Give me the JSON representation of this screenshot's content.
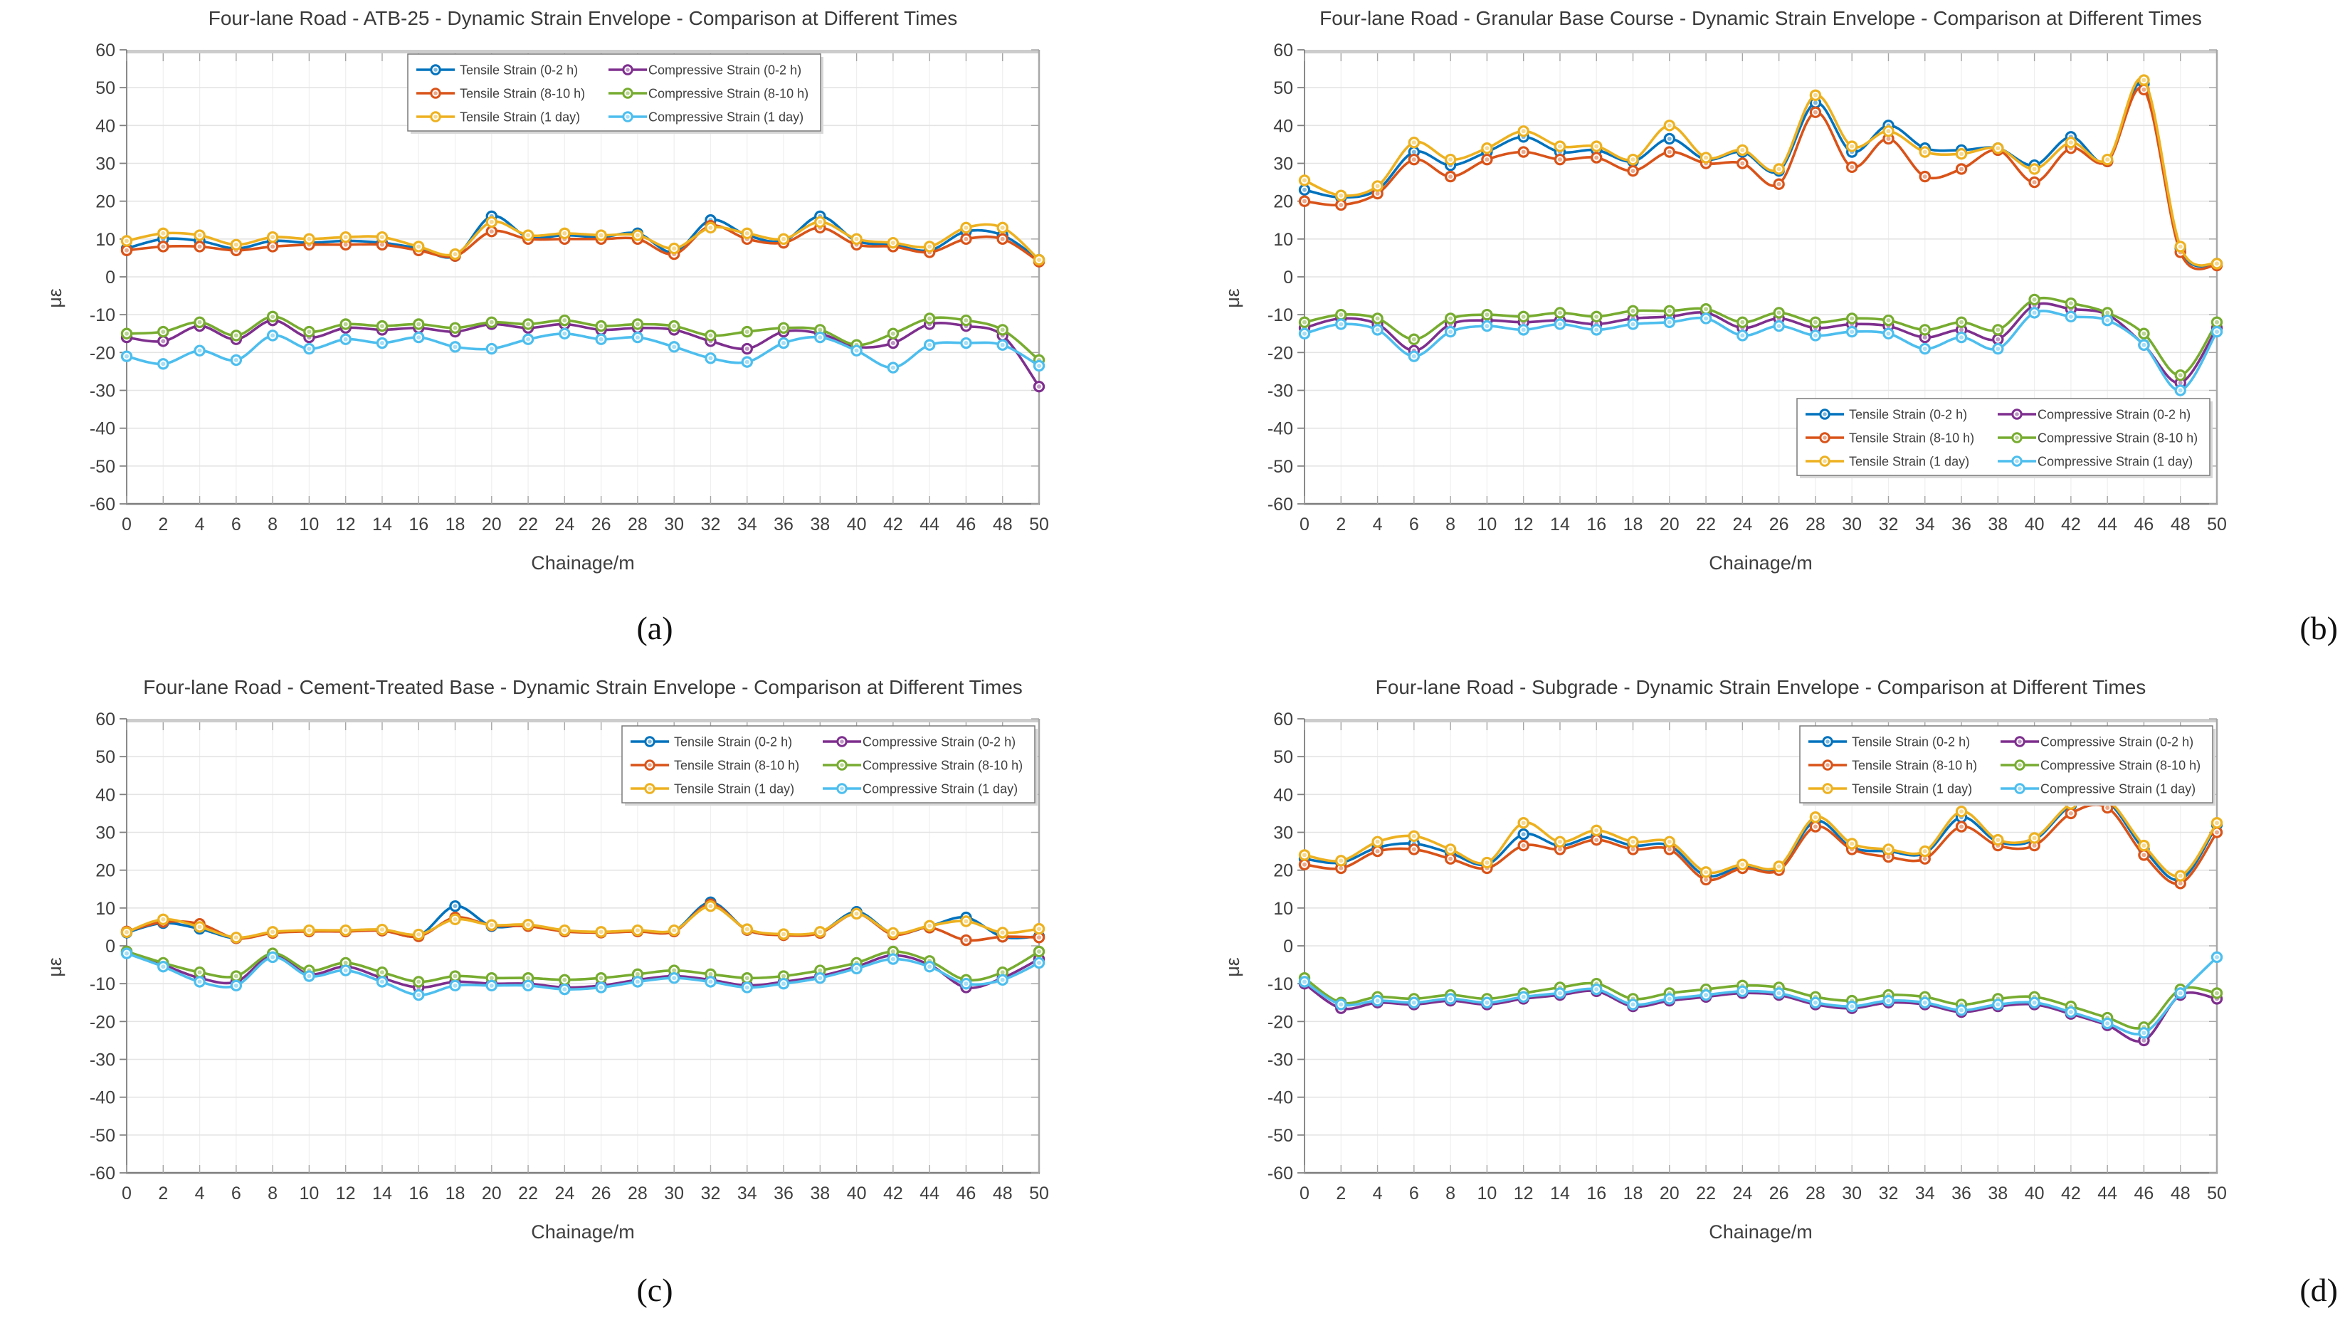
{
  "figure": {
    "background": "#ffffff",
    "captions": {
      "a": "(a)",
      "b": "(b)",
      "c": "(c)",
      "d": "(d)"
    }
  },
  "palette": {
    "tensile_0_2h": "#0072BD",
    "tensile_8_10h": "#D95319",
    "tensile_1day": "#EDB120",
    "compressive_0_2h": "#7E2F8E",
    "compressive_8_10h": "#77AC30",
    "compressive_1day": "#4DBEEE",
    "grid": "#e4e4e4",
    "axis": "#808080",
    "text": "#3f3f3f"
  },
  "chart_data": [
    {
      "type": "line",
      "id": "a",
      "title": "Four-lane Road - ATB-25 - Dynamic Strain Envelope - Comparison at Different Times",
      "xlabel": "Chainage/m",
      "ylabel": "με",
      "xlim": [
        0,
        50
      ],
      "ylim": [
        -60,
        60
      ],
      "grid": true,
      "legend_position": "north",
      "yticks": [
        60,
        50,
        40,
        30,
        20,
        10,
        0,
        -10,
        -20,
        -30,
        -40,
        -50,
        -60
      ],
      "x": [
        0,
        2,
        4,
        6,
        8,
        10,
        12,
        14,
        16,
        18,
        20,
        22,
        24,
        26,
        28,
        30,
        32,
        34,
        36,
        38,
        40,
        42,
        44,
        46,
        48,
        50
      ],
      "series": [
        {
          "name": "Tensile Strain (0-2 h)",
          "color": "#0072BD",
          "values": [
            7.5,
            10,
            9.5,
            7.5,
            9.5,
            9,
            9.5,
            9,
            7.5,
            5.5,
            16,
            10.5,
            11,
            10.5,
            11.5,
            6.5,
            15,
            11,
            9.5,
            16,
            9.5,
            8.5,
            7,
            12,
            11,
            4.5
          ]
        },
        {
          "name": "Tensile Strain (8-10 h)",
          "color": "#D95319",
          "values": [
            7,
            8,
            8,
            7,
            8,
            8.5,
            8.5,
            8.5,
            7,
            5.5,
            12,
            10,
            10,
            10,
            10,
            6,
            13.5,
            10,
            9,
            13,
            8.5,
            8,
            6.5,
            10,
            10,
            4
          ]
        },
        {
          "name": "Tensile Strain (1 day)",
          "color": "#EDB120",
          "values": [
            9.5,
            11.5,
            11,
            8.5,
            10.5,
            10,
            10.5,
            10.5,
            8,
            6,
            14.5,
            11,
            11.5,
            11,
            11,
            7.5,
            13,
            11.5,
            10,
            14.5,
            10,
            9,
            8,
            13,
            13,
            4.5
          ]
        },
        {
          "name": "Compressive Strain (0-2 h)",
          "color": "#7E2F8E",
          "values": [
            -16,
            -17,
            -13,
            -16.5,
            -11.5,
            -16,
            -13.5,
            -14,
            -13.5,
            -14.5,
            -12.5,
            -13.5,
            -12.5,
            -14,
            -13.5,
            -14,
            -17,
            -19,
            -14.5,
            -15,
            -18.5,
            -17.5,
            -12.5,
            -13,
            -15.5,
            -29
          ]
        },
        {
          "name": "Compressive Strain (8-10 h)",
          "color": "#77AC30",
          "values": [
            -15,
            -14.5,
            -12,
            -15.5,
            -10.5,
            -14.5,
            -12.5,
            -13,
            -12.5,
            -13.5,
            -12,
            -12.5,
            -11.5,
            -13,
            -12.5,
            -13,
            -15.5,
            -14.5,
            -13.5,
            -14,
            -18,
            -15,
            -11,
            -11.5,
            -14,
            -22
          ]
        },
        {
          "name": "Compressive Strain (1 day)",
          "color": "#4DBEEE",
          "values": [
            -21,
            -23,
            -19.5,
            -22,
            -15.5,
            -19,
            -16.5,
            -17.5,
            -16,
            -18.5,
            -19,
            -16.5,
            -15,
            -16.5,
            -16,
            -18.5,
            -21.5,
            -22.5,
            -17.5,
            -16,
            -19.5,
            -24,
            -18,
            -17.5,
            -18,
            -23.5
          ]
        }
      ]
    },
    {
      "type": "line",
      "id": "b",
      "title": "Four-lane Road - Granular Base Course - Dynamic Strain Envelope - Comparison at Different Times",
      "xlabel": "Chainage/m",
      "ylabel": "με",
      "xlim": [
        0,
        50
      ],
      "ylim": [
        -60,
        60
      ],
      "grid": true,
      "legend_position": "southeast",
      "yticks": [
        60,
        50,
        40,
        30,
        20,
        10,
        0,
        -10,
        -20,
        -30,
        -40,
        -50,
        -60
      ],
      "x": [
        0,
        2,
        4,
        6,
        8,
        10,
        12,
        14,
        16,
        18,
        20,
        22,
        24,
        26,
        28,
        30,
        32,
        34,
        36,
        38,
        40,
        42,
        44,
        46,
        48,
        50
      ],
      "series": [
        {
          "name": "Tensile Strain (0-2 h)",
          "color": "#0072BD",
          "values": [
            23,
            21,
            23,
            33,
            29.5,
            33,
            37,
            33,
            33.5,
            30.5,
            36.5,
            31,
            33,
            28,
            46,
            33,
            40,
            34,
            33.5,
            34,
            29.5,
            37,
            30.5,
            51,
            7.5,
            3.5
          ]
        },
        {
          "name": "Tensile Strain (8-10 h)",
          "color": "#D95319",
          "values": [
            20,
            19,
            22,
            31,
            26.5,
            31,
            33,
            31,
            31.5,
            28,
            33,
            30,
            30,
            24.5,
            43.5,
            29,
            36.5,
            26.5,
            28.5,
            33.5,
            25,
            34,
            30.5,
            49.5,
            6.5,
            3
          ]
        },
        {
          "name": "Tensile Strain (1 day)",
          "color": "#EDB120",
          "values": [
            25.5,
            21.5,
            24,
            35.5,
            31,
            34,
            38.5,
            34.5,
            34.5,
            31,
            40,
            31.5,
            33.5,
            28.5,
            48,
            34.5,
            38.5,
            33,
            32.5,
            34,
            28.5,
            35.5,
            31,
            52,
            8,
            3.5
          ]
        },
        {
          "name": "Compressive Strain (0-2 h)",
          "color": "#7E2F8E",
          "values": [
            -13.5,
            -11,
            -12.5,
            -19.5,
            -12.5,
            -11.5,
            -12,
            -11.5,
            -12.5,
            -11,
            -10.5,
            -9.5,
            -13.5,
            -11,
            -13.5,
            -12.5,
            -13,
            -16,
            -14,
            -16.5,
            -7.5,
            -8.5,
            -10,
            -18,
            -28,
            -13.5
          ]
        },
        {
          "name": "Compressive Strain (8-10 h)",
          "color": "#77AC30",
          "values": [
            -12,
            -10,
            -11,
            -16.5,
            -11,
            -10,
            -10.5,
            -9.5,
            -10.5,
            -9,
            -9,
            -8.5,
            -12,
            -9.5,
            -12,
            -11,
            -11.5,
            -14,
            -12,
            -14,
            -6,
            -7,
            -9.5,
            -15,
            -26,
            -12
          ]
        },
        {
          "name": "Compressive Strain (1 day)",
          "color": "#4DBEEE",
          "values": [
            -15,
            -12.5,
            -14,
            -21,
            -14.5,
            -13,
            -14,
            -12.5,
            -14,
            -12.5,
            -12,
            -11,
            -15.5,
            -13,
            -15.5,
            -14.5,
            -15,
            -19,
            -16,
            -19,
            -9.5,
            -10.5,
            -11.5,
            -18,
            -30,
            -14.5
          ]
        }
      ]
    },
    {
      "type": "line",
      "id": "c",
      "title": "Four-lane Road - Cement-Treated Base - Dynamic Strain Envelope - Comparison at Different Times",
      "xlabel": "Chainage/m",
      "ylabel": "με",
      "xlim": [
        0,
        50
      ],
      "ylim": [
        -60,
        60
      ],
      "grid": true,
      "legend_position": "northeast",
      "yticks": [
        60,
        50,
        40,
        30,
        20,
        10,
        0,
        -10,
        -20,
        -30,
        -40,
        -50,
        -60
      ],
      "x": [
        0,
        2,
        4,
        6,
        8,
        10,
        12,
        14,
        16,
        18,
        20,
        22,
        24,
        26,
        28,
        30,
        32,
        34,
        36,
        38,
        40,
        42,
        44,
        46,
        48,
        50
      ],
      "series": [
        {
          "name": "Tensile Strain (0-2 h)",
          "color": "#0072BD",
          "values": [
            3.5,
            6,
            4.5,
            2,
            3.6,
            4,
            4,
            4.2,
            2.7,
            10.5,
            5.2,
            5.5,
            4,
            3.6,
            4,
            4,
            11.5,
            4.2,
            3,
            3.6,
            9,
            3.3,
            5.2,
            7.5,
            2.4,
            2.5
          ]
        },
        {
          "name": "Tensile Strain (8-10 h)",
          "color": "#D95319",
          "values": [
            3.8,
            6.3,
            5.8,
            2,
            3.4,
            3.8,
            3.8,
            4,
            2.5,
            7.5,
            5.4,
            5.2,
            3.8,
            3.5,
            3.8,
            3.8,
            11,
            4.2,
            2.8,
            3.4,
            8.5,
            3,
            4.8,
            1.5,
            2.4,
            2.2
          ]
        },
        {
          "name": "Tensile Strain (1 day)",
          "color": "#EDB120",
          "values": [
            3.6,
            7,
            5,
            2.2,
            3.7,
            4.1,
            4.1,
            4.3,
            3,
            7,
            5.5,
            5.6,
            4.1,
            3.7,
            4.1,
            4.1,
            10.5,
            4.4,
            3.1,
            3.7,
            8.5,
            3.4,
            5.3,
            6.5,
            3.5,
            4.5
          ]
        },
        {
          "name": "Compressive Strain (0-2 h)",
          "color": "#7E2F8E",
          "values": [
            -1.5,
            -5,
            -8.5,
            -9.5,
            -2.5,
            -7.5,
            -5.5,
            -8.5,
            -11,
            -9.5,
            -10,
            -10,
            -11,
            -10.5,
            -9,
            -8,
            -9,
            -10.5,
            -9.5,
            -8,
            -5.5,
            -2.5,
            -5,
            -11,
            -8.5,
            -3.5
          ]
        },
        {
          "name": "Compressive Strain (8-10 h)",
          "color": "#77AC30",
          "values": [
            -1.5,
            -4.5,
            -7,
            -8,
            -2,
            -6.5,
            -4.5,
            -7,
            -9.5,
            -8,
            -8.5,
            -8.5,
            -9,
            -8.5,
            -7.5,
            -6.5,
            -7.5,
            -8.5,
            -8,
            -6.5,
            -4.5,
            -1.5,
            -4,
            -9,
            -7,
            -1.5
          ]
        },
        {
          "name": "Compressive Strain (1 day)",
          "color": "#4DBEEE",
          "values": [
            -2,
            -5.5,
            -9.5,
            -10.5,
            -3,
            -8,
            -6.5,
            -9.5,
            -13,
            -10.5,
            -10.5,
            -10.5,
            -11.5,
            -11,
            -9.5,
            -8.5,
            -9.5,
            -11,
            -10,
            -8.5,
            -6,
            -3.5,
            -5.5,
            -10,
            -9,
            -4.5
          ]
        }
      ]
    },
    {
      "type": "line",
      "id": "d",
      "title": "Four-lane Road - Subgrade - Dynamic Strain Envelope - Comparison at Different Times",
      "xlabel": "Chainage/m",
      "ylabel": "με",
      "xlim": [
        0,
        50
      ],
      "ylim": [
        -60,
        60
      ],
      "grid": true,
      "legend_position": "northeast",
      "yticks": [
        60,
        50,
        40,
        30,
        20,
        10,
        0,
        -10,
        -20,
        -30,
        -40,
        -50,
        -60
      ],
      "x": [
        0,
        2,
        4,
        6,
        8,
        10,
        12,
        14,
        16,
        18,
        20,
        22,
        24,
        26,
        28,
        30,
        32,
        34,
        36,
        38,
        40,
        42,
        44,
        46,
        48,
        50
      ],
      "series": [
        {
          "name": "Tensile Strain (0-2 h)",
          "color": "#0072BD",
          "values": [
            23,
            22,
            26,
            27,
            24.5,
            21.5,
            29.5,
            26.5,
            29,
            26.5,
            26.5,
            18.5,
            21,
            20.5,
            33,
            26,
            25,
            24.5,
            34,
            27.5,
            28,
            37,
            38,
            25.5,
            17.5,
            32
          ]
        },
        {
          "name": "Tensile Strain (8-10 h)",
          "color": "#D95319",
          "values": [
            21.5,
            20.5,
            25,
            25.5,
            23,
            20.5,
            26.5,
            25.5,
            28,
            25.5,
            25.5,
            17.5,
            20.5,
            20,
            31.5,
            25.5,
            23.5,
            23,
            31.5,
            26.5,
            26.5,
            35,
            36.5,
            24,
            16.5,
            30
          ]
        },
        {
          "name": "Tensile Strain (1 day)",
          "color": "#EDB120",
          "values": [
            24,
            22.5,
            27.5,
            29,
            25.5,
            22,
            32.5,
            27.5,
            30.5,
            27.5,
            27.5,
            19.5,
            21.5,
            21,
            34,
            27,
            25.5,
            25,
            35.5,
            28,
            28.5,
            37.5,
            38.5,
            26.5,
            18.5,
            32.5
          ]
        },
        {
          "name": "Compressive Strain (0-2 h)",
          "color": "#7E2F8E",
          "values": [
            -10,
            -16.5,
            -15,
            -15.5,
            -14.5,
            -15.5,
            -14,
            -13,
            -12,
            -16,
            -14.5,
            -13.5,
            -12.5,
            -13,
            -15.5,
            -16.5,
            -15,
            -15.5,
            -17.5,
            -16,
            -15.5,
            -18,
            -21,
            -25,
            -13,
            -14
          ]
        },
        {
          "name": "Compressive Strain (8-10 h)",
          "color": "#77AC30",
          "values": [
            -8.5,
            -15,
            -13.5,
            -14,
            -13,
            -14,
            -12.5,
            -11,
            -10,
            -14,
            -12.5,
            -11.5,
            -10.5,
            -11,
            -13.5,
            -14.5,
            -13,
            -13.5,
            -15.5,
            -14,
            -13.5,
            -16,
            -19,
            -21.5,
            -11.5,
            -12.5
          ]
        },
        {
          "name": "Compressive Strain (1 day)",
          "color": "#4DBEEE",
          "values": [
            -9.5,
            -15.5,
            -14.5,
            -15,
            -14,
            -15,
            -13.5,
            -12.5,
            -11.5,
            -15.5,
            -14,
            -13,
            -12,
            -12.5,
            -15,
            -16,
            -14.5,
            -15,
            -17,
            -15.5,
            -15,
            -17.5,
            -20.5,
            -23,
            -12.5,
            -3
          ]
        }
      ]
    }
  ]
}
